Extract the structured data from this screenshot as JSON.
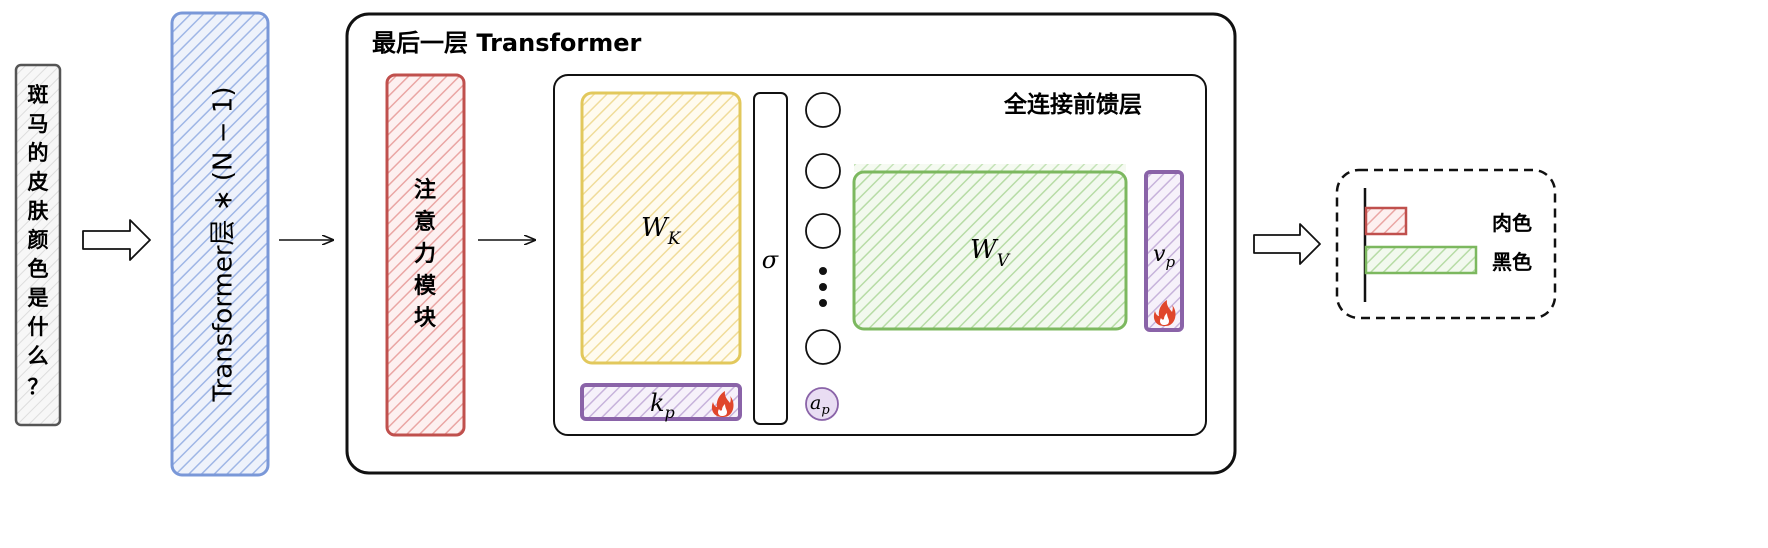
{
  "input": {
    "question_chars": [
      "斑",
      "马",
      "的",
      "皮",
      "肤",
      "颜",
      "色",
      "是",
      "什",
      "么",
      "？"
    ]
  },
  "transformer_stack": {
    "label": "Transformer层 ∗ (N − 1)"
  },
  "last_layer": {
    "title": "最后一层 Transformer"
  },
  "attention": {
    "chars": [
      "注",
      "意",
      "力",
      "模",
      "块"
    ]
  },
  "ffn": {
    "title": "全连接前馈层",
    "wk": {
      "base": "W",
      "sub": "K"
    },
    "wv": {
      "base": "W",
      "sub": "V"
    },
    "sigma": "σ",
    "kp": {
      "base": "k",
      "sub": "p"
    },
    "vp": {
      "base": "v",
      "sub": "p"
    },
    "ap": {
      "base": "a",
      "sub": "p"
    },
    "fire_icon": "fire-icon"
  },
  "output": {
    "bars": [
      {
        "label": "肉色",
        "color": "#c0504d"
      },
      {
        "label": "黑色",
        "color": "#7cb85f"
      }
    ]
  },
  "colors": {
    "blue": "#7a98d8",
    "red": "#c0504d",
    "yellow": "#e2c85c",
    "green": "#7cb85f",
    "purple": "#8a63a8",
    "gray": "#555555"
  }
}
